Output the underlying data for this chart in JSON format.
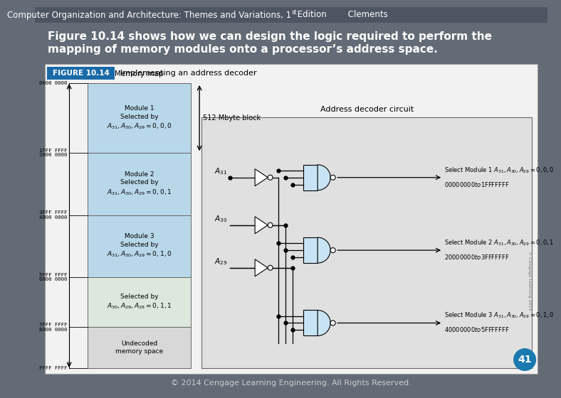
{
  "bg_color": "#636b76",
  "header_bg": "#4d5562",
  "header_text": "Computer Organization and Architecture: Themes and Variations, 1st Edition        Clements",
  "header_text_color": "#ffffff",
  "header_fontsize": 9,
  "title_text": "Figure 10.14 shows how we can design the logic required to perform the\nmapping of memory modules onto a processor’s address space.",
  "title_color": "#ffffff",
  "title_fontsize": 11.5,
  "footer_text": "© 2014 Cengage Learning Engineering. All Rights Reserved.",
  "footer_color": "#dddddd",
  "figure_label_bg": "#1a6aa8",
  "figure_label_text": "FIGURE 10.14",
  "figure_label_color": "#ffffff",
  "figure_subtitle": "Implementing an address decoder",
  "figure_bg": "#f0f0f0",
  "memory_map_title": "Memory map",
  "block_label": "512 Mbyte block",
  "adc_title": "Address decoder circuit",
  "select1_line1": "Select Module 1 A",
  "select1_line2": "$00000000 to $1FFFFFFF",
  "select2_line1": "Select Module 2 A",
  "select2_line2": "$20000000 to $3FFFFFFF",
  "select3_line1": "Select Module 3 A",
  "select3_line2": "$40000000 to $5FFFFFFF",
  "page_num": "41",
  "module_bg": "#b8d8ea",
  "module4_bg": "#dce8dc",
  "undecoded_bg": "#d8d8d8",
  "adc_bg": "#e0e0e0"
}
